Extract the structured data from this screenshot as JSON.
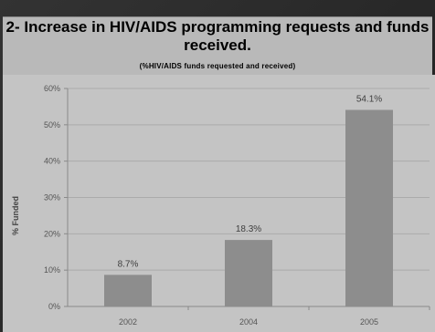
{
  "header": {
    "title": "2- Increase in HIV/AIDS programming requests and funds received.",
    "subtitle": "(%HIV/AIDS funds requested and received)"
  },
  "colors": {
    "background": "#2a2a2a",
    "header_band": "#b9b9b9",
    "plot_panel": "#c4c4c4",
    "bar": "#8d8d8d"
  },
  "chart_data": {
    "type": "bar",
    "title": "2- Increase in HIV/AIDS programming requests and funds received.",
    "subtitle": "(%HIV/AIDS funds requested and received)",
    "categories": [
      "2002",
      "2004",
      "2005"
    ],
    "values": [
      8.7,
      18.3,
      54.1
    ],
    "data_labels": [
      "8.7%",
      "18.3%",
      "54.1%"
    ],
    "xlabel": "",
    "ylabel": "% Funded",
    "ylim": [
      0,
      60
    ],
    "yticks": [
      0,
      10,
      20,
      30,
      40,
      50,
      60
    ],
    "ytick_labels": [
      "0%",
      "10%",
      "20%",
      "30%",
      "40%",
      "50%",
      "60%"
    ],
    "grid": "horizontal",
    "legend": "none"
  }
}
